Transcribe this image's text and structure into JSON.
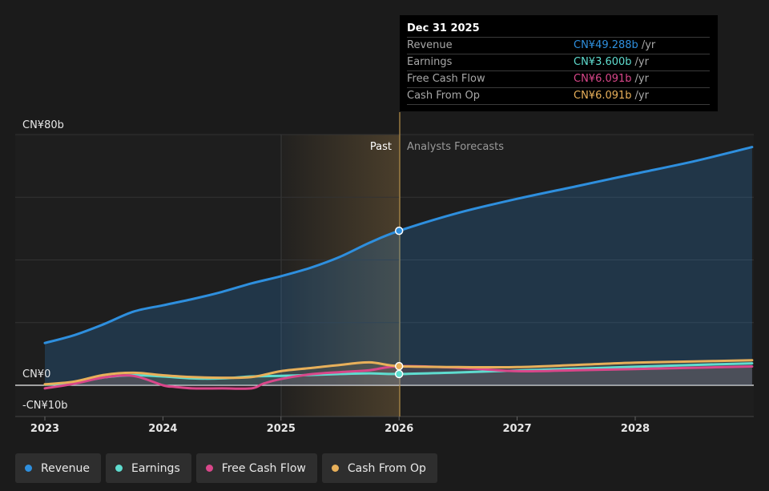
{
  "chart_data": {
    "type": "area",
    "x_ticks": [
      "2023",
      "2024",
      "2025",
      "2026",
      "2027",
      "2028"
    ],
    "y_ticks": [
      "CN¥80b",
      "CN¥0",
      "-CN¥10b"
    ],
    "xlim": [
      "2023-01",
      "2028-12"
    ],
    "ylim": [
      -10,
      80
    ],
    "divider_label_past": "Past",
    "divider_label_forecast": "Analysts Forecasts",
    "series": [
      {
        "name": "Revenue",
        "color": "#2e8fde",
        "x": [
          2023.0,
          2023.25,
          2023.5,
          2023.75,
          2024.0,
          2024.25,
          2024.5,
          2024.75,
          2025.0,
          2025.25,
          2025.5,
          2025.75,
          2026.0,
          2026.5,
          2027.0,
          2027.5,
          2028.0,
          2028.5,
          2028.99
        ],
        "values": [
          13.5,
          16.0,
          19.5,
          23.5,
          25.5,
          27.5,
          29.8,
          32.5,
          34.8,
          37.5,
          41.0,
          45.5,
          49.288,
          55.0,
          59.5,
          63.5,
          67.5,
          71.5,
          76.0
        ]
      },
      {
        "name": "Earnings",
        "color": "#5fdccf",
        "x": [
          2023.0,
          2023.25,
          2023.5,
          2023.75,
          2024.0,
          2024.25,
          2024.5,
          2024.75,
          2025.0,
          2025.25,
          2025.5,
          2025.75,
          2026.0,
          2026.5,
          2027.0,
          2027.5,
          2028.0,
          2028.5,
          2028.99
        ],
        "values": [
          0.2,
          0.8,
          2.5,
          3.2,
          2.8,
          2.2,
          2.2,
          2.8,
          3.0,
          3.3,
          3.6,
          3.8,
          3.6,
          4.1,
          4.7,
          5.3,
          5.9,
          6.5,
          7.0
        ]
      },
      {
        "name": "Free Cash Flow",
        "color": "#d9478a",
        "x": [
          2023.0,
          2023.25,
          2023.5,
          2023.75,
          2024.0,
          2024.1,
          2024.25,
          2024.5,
          2024.75,
          2024.85,
          2025.0,
          2025.25,
          2025.5,
          2025.75,
          2026.0,
          2026.5,
          2027.0,
          2027.5,
          2028.0,
          2028.5,
          2028.99
        ],
        "values": [
          -1.0,
          0.5,
          2.5,
          3.0,
          0.0,
          -0.5,
          -1.0,
          -1.0,
          -1.0,
          0.5,
          2.0,
          3.5,
          4.2,
          4.8,
          6.091,
          5.6,
          4.5,
          4.8,
          5.2,
          5.6,
          6.0
        ]
      },
      {
        "name": "Cash From Op",
        "color": "#e8b05a",
        "x": [
          2023.0,
          2023.25,
          2023.5,
          2023.75,
          2024.0,
          2024.25,
          2024.5,
          2024.75,
          2025.0,
          2025.25,
          2025.5,
          2025.75,
          2026.0,
          2026.5,
          2027.0,
          2027.5,
          2028.0,
          2028.5,
          2028.99
        ],
        "values": [
          0.3,
          1.2,
          3.3,
          4.0,
          3.2,
          2.6,
          2.4,
          2.6,
          4.5,
          5.5,
          6.5,
          7.3,
          6.091,
          5.8,
          5.8,
          6.5,
          7.2,
          7.6,
          8.0
        ]
      }
    ]
  },
  "tooltip": {
    "date": "Dec 31 2025",
    "rows": [
      {
        "label": "Revenue",
        "value": "CN¥49.288b",
        "unit": "/yr",
        "color": "#2e8fde"
      },
      {
        "label": "Earnings",
        "value": "CN¥3.600b",
        "unit": "/yr",
        "color": "#5fdccf"
      },
      {
        "label": "Free Cash Flow",
        "value": "CN¥6.091b",
        "unit": "/yr",
        "color": "#d9478a"
      },
      {
        "label": "Cash From Op",
        "value": "CN¥6.091b",
        "unit": "/yr",
        "color": "#e8b05a"
      }
    ]
  },
  "legend": [
    {
      "label": "Revenue",
      "color": "#2e8fde"
    },
    {
      "label": "Earnings",
      "color": "#5fdccf"
    },
    {
      "label": "Free Cash Flow",
      "color": "#d9478a"
    },
    {
      "label": "Cash From Op",
      "color": "#e8b05a"
    }
  ]
}
